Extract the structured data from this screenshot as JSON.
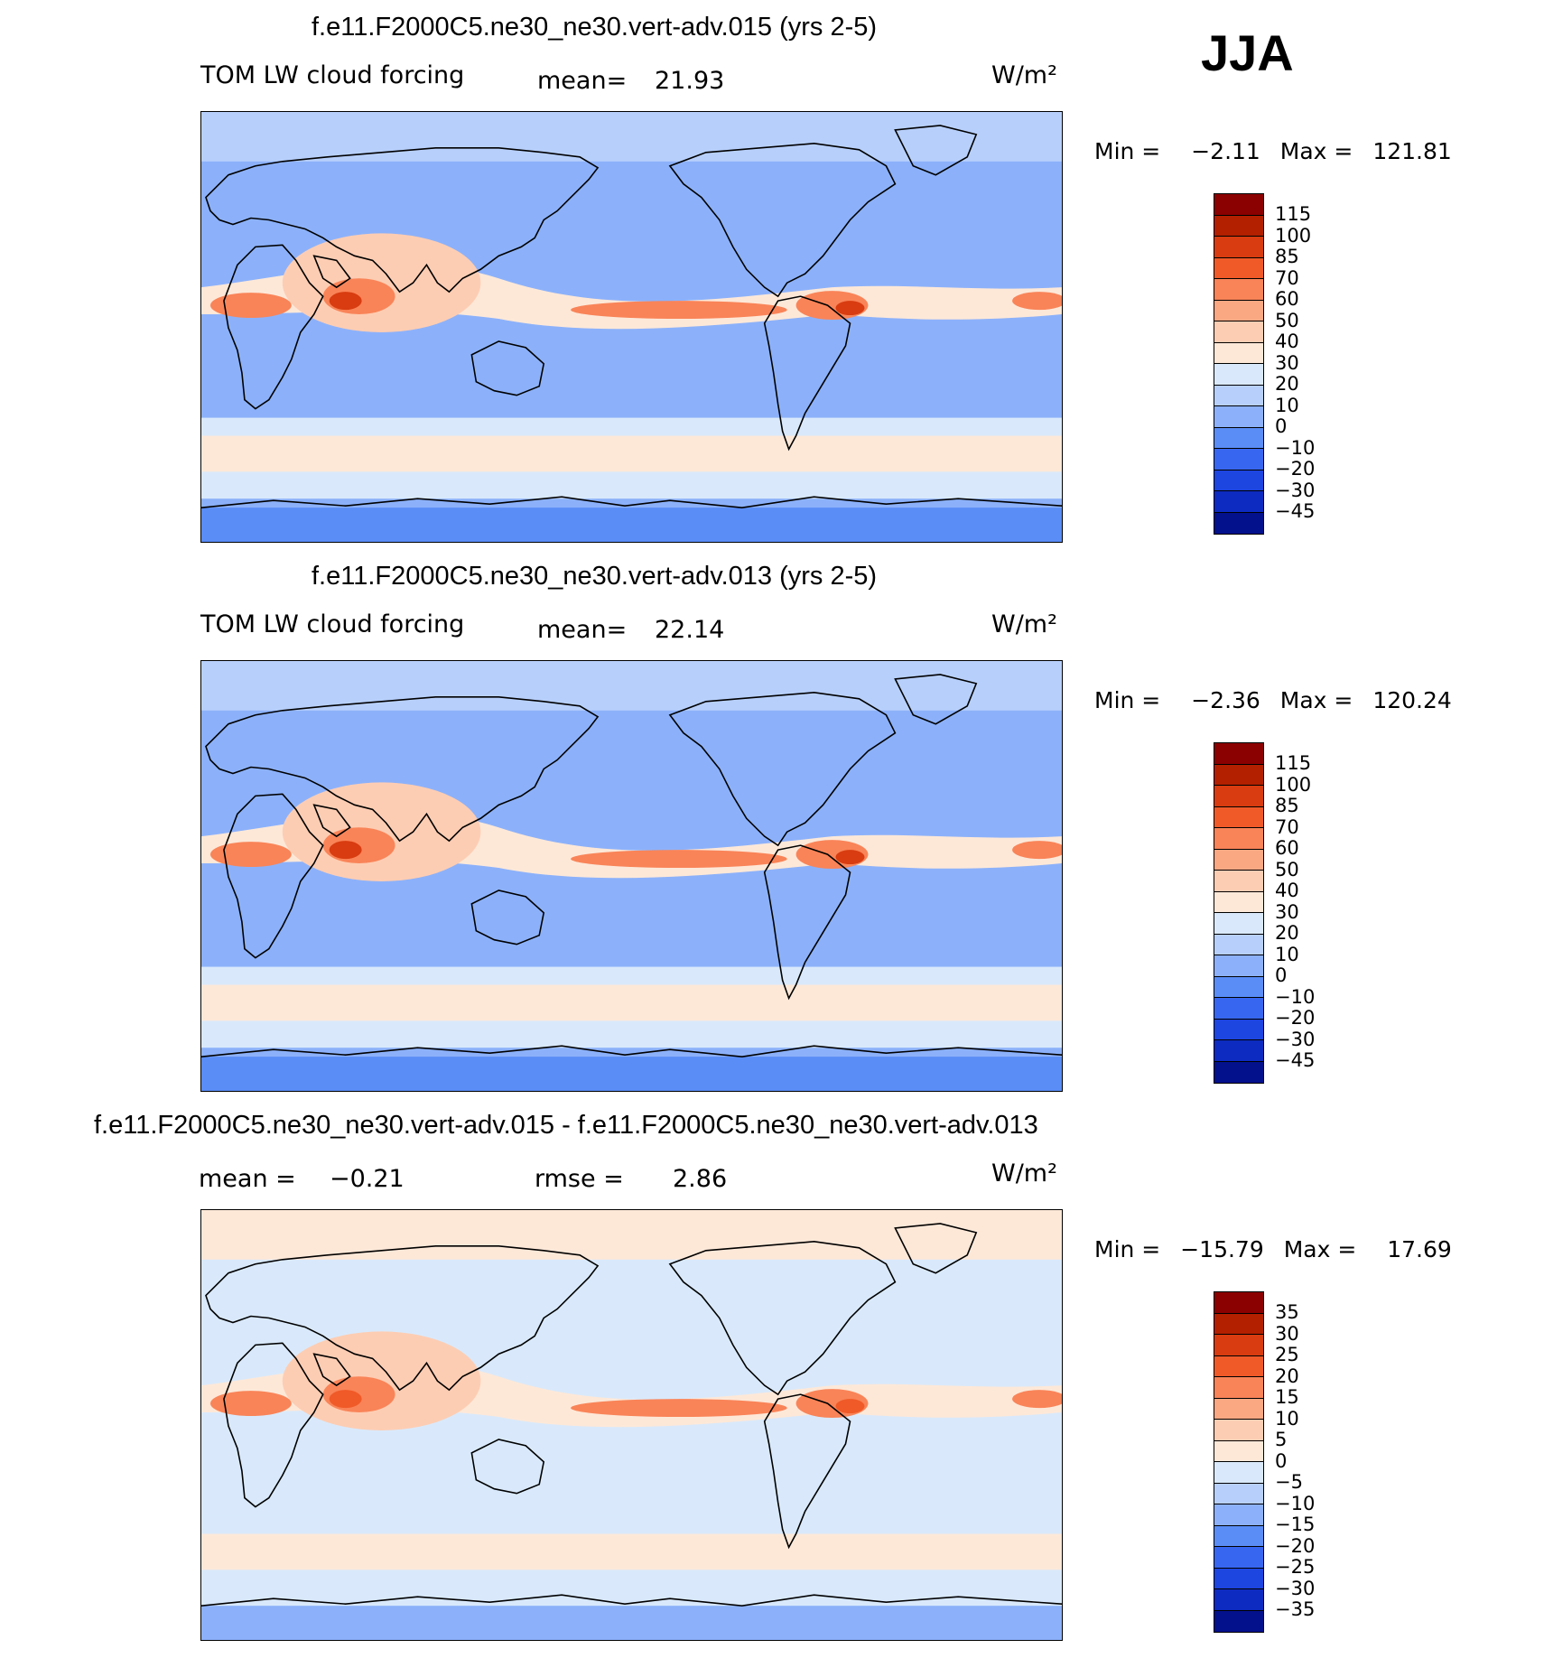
{
  "season": "JJA",
  "panels": [
    {
      "title": "f.e11.F2000C5.ne30_ne30.vert-adv.015 (yrs 2-5)",
      "variable": "TOM LW cloud forcing",
      "stat1_label": "mean=",
      "stat1_value": "21.93",
      "stat2_label": "",
      "stat2_value": "",
      "units": "W/m²",
      "min_label": "Min =",
      "min_value": "−2.11",
      "max_label": "Max =",
      "max_value": "121.81",
      "colorbar": {
        "colors": [
          "#8B0000",
          "#B22000",
          "#D83C10",
          "#F05A28",
          "#F98458",
          "#FAA882",
          "#FDCDB3",
          "#FDE8D8",
          "#D9E9FB",
          "#B7D0FB",
          "#8CB1FA",
          "#5A8DF6",
          "#3766F0",
          "#1D45E0",
          "#0D2BC0",
          "#03118C"
        ],
        "labels": [
          "115",
          "100",
          "85",
          "70",
          "60",
          "50",
          "40",
          "30",
          "20",
          "10",
          "0",
          "−10",
          "−20",
          "−30",
          "−45"
        ]
      },
      "map_colors": {
        "background": "#8CB1FA",
        "band_light": "#B7D0FB",
        "band_pale": "#D9E9FB",
        "warm_pale": "#FDE8D8",
        "warm_light": "#FDCDB3",
        "warm": "#F98458",
        "hot": "#D83C10",
        "polar": "#5A8DF6"
      }
    },
    {
      "title": "f.e11.F2000C5.ne30_ne30.vert-adv.013 (yrs 2-5)",
      "variable": "TOM LW cloud forcing",
      "stat1_label": "mean=",
      "stat1_value": "22.14",
      "stat2_label": "",
      "stat2_value": "",
      "units": "W/m²",
      "min_label": "Min =",
      "min_value": "−2.36",
      "max_label": "Max =",
      "max_value": "120.24",
      "colorbar": {
        "colors": [
          "#8B0000",
          "#B22000",
          "#D83C10",
          "#F05A28",
          "#F98458",
          "#FAA882",
          "#FDCDB3",
          "#FDE8D8",
          "#D9E9FB",
          "#B7D0FB",
          "#8CB1FA",
          "#5A8DF6",
          "#3766F0",
          "#1D45E0",
          "#0D2BC0",
          "#03118C"
        ],
        "labels": [
          "115",
          "100",
          "85",
          "70",
          "60",
          "50",
          "40",
          "30",
          "20",
          "10",
          "0",
          "−10",
          "−20",
          "−30",
          "−45"
        ]
      },
      "map_colors": {
        "background": "#8CB1FA",
        "band_light": "#B7D0FB",
        "band_pale": "#D9E9FB",
        "warm_pale": "#FDE8D8",
        "warm_light": "#FDCDB3",
        "warm": "#F98458",
        "hot": "#D83C10",
        "polar": "#5A8DF6"
      }
    },
    {
      "title": "f.e11.F2000C5.ne30_ne30.vert-adv.015 - f.e11.F2000C5.ne30_ne30.vert-adv.013",
      "variable": "",
      "stat1_label": "mean =",
      "stat1_value": "−0.21",
      "stat2_label": "rmse =",
      "stat2_value": "2.86",
      "units": "W/m²",
      "min_label": "Min =",
      "min_value": "−15.79",
      "max_label": "Max =",
      "max_value": "17.69",
      "colorbar": {
        "colors": [
          "#8B0000",
          "#B22000",
          "#D83C10",
          "#F05A28",
          "#F98458",
          "#FAA882",
          "#FDCDB3",
          "#FDE8D8",
          "#D9E9FB",
          "#B7D0FB",
          "#8CB1FA",
          "#5A8DF6",
          "#3766F0",
          "#1D45E0",
          "#0D2BC0",
          "#03118C"
        ],
        "labels": [
          "35",
          "30",
          "25",
          "20",
          "15",
          "10",
          "5",
          "0",
          "−5",
          "−10",
          "−15",
          "−20",
          "−25",
          "−30",
          "−35"
        ]
      },
      "map_colors": {
        "background": "#D9E9FB",
        "band_light": "#FDE8D8",
        "band_pale": "#D9E9FB",
        "warm_pale": "#FDE8D8",
        "warm_light": "#FDCDB3",
        "warm": "#F98458",
        "hot": "#F05A28",
        "polar": "#8CB1FA"
      }
    }
  ]
}
